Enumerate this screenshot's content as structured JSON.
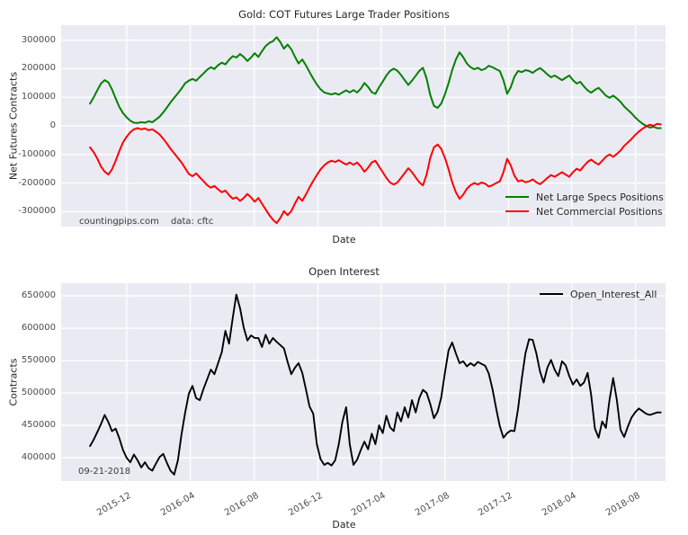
{
  "figure": {
    "background": "#ffffff",
    "plot_background": "#eaeaf2",
    "gridline_color": "#ffffff"
  },
  "chart_data": [
    {
      "type": "line",
      "title": "Gold: COT Futures Large Trader Positions",
      "xlabel": "Date",
      "ylabel": "Net Futures Contracts",
      "grid": true,
      "legend_position": "lower right",
      "annotations": [
        "countingpips.com",
        "data: cftc"
      ],
      "x_unit": "week_index",
      "xlim": [
        -7.9,
        157.3
      ],
      "ylim": [
        -352000,
        352000
      ],
      "yticks": [
        300000,
        200000,
        100000,
        0,
        -100000,
        -200000,
        -300000
      ],
      "xticks": [
        10,
        27.4,
        44.9,
        62.3,
        79.6,
        97.0,
        114.4,
        131.7,
        149.1
      ],
      "series": [
        {
          "name": "Net Large Specs Positions",
          "color": "#008000",
          "values": [
            78000,
            100000,
            125000,
            148000,
            160000,
            152000,
            128000,
            96000,
            66000,
            45000,
            30000,
            18000,
            11000,
            10000,
            13000,
            11000,
            16000,
            13000,
            22000,
            32000,
            47000,
            64000,
            82000,
            98000,
            114000,
            130000,
            149000,
            158000,
            164000,
            158000,
            171000,
            183000,
            196000,
            205000,
            199000,
            212000,
            221000,
            215000,
            231000,
            244000,
            239000,
            251000,
            241000,
            227000,
            239000,
            254000,
            241000,
            261000,
            279000,
            290000,
            296000,
            310000,
            293000,
            270000,
            284000,
            268000,
            242000,
            218000,
            232000,
            212000,
            188000,
            165000,
            145000,
            128000,
            117000,
            113000,
            110000,
            114000,
            109000,
            117000,
            124000,
            117000,
            125000,
            117000,
            130000,
            150000,
            136000,
            118000,
            112000,
            135000,
            155000,
            176000,
            192000,
            200000,
            193000,
            178000,
            160000,
            143000,
            158000,
            175000,
            192000,
            203000,
            165000,
            108000,
            70000,
            63000,
            78000,
            110000,
            150000,
            195000,
            232000,
            257000,
            240000,
            218000,
            205000,
            198000,
            203000,
            195000,
            200000,
            210000,
            205000,
            198000,
            192000,
            160000,
            112000,
            135000,
            172000,
            192000,
            188000,
            195000,
            192000,
            185000,
            195000,
            202000,
            192000,
            180000,
            170000,
            176000,
            168000,
            160000,
            168000,
            176000,
            160000,
            148000,
            154000,
            138000,
            124000,
            116000,
            126000,
            133000,
            120000,
            106000,
            98000,
            106000,
            96000,
            84000,
            68000,
            56000,
            44000,
            30000,
            18000,
            8000,
            0,
            -6000,
            -3000,
            -8000,
            -8000
          ]
        },
        {
          "name": "Net Commercial Positions",
          "color": "#ff0000",
          "values": [
            -75000,
            -92000,
            -115000,
            -142000,
            -160000,
            -170000,
            -152000,
            -122000,
            -88000,
            -58000,
            -38000,
            -22000,
            -12000,
            -8000,
            -12000,
            -9000,
            -15000,
            -12000,
            -20000,
            -30000,
            -45000,
            -62000,
            -80000,
            -96000,
            -112000,
            -128000,
            -148000,
            -168000,
            -176000,
            -166000,
            -180000,
            -193000,
            -207000,
            -216000,
            -210000,
            -222000,
            -232000,
            -226000,
            -242000,
            -255000,
            -250000,
            -262000,
            -252000,
            -238000,
            -250000,
            -265000,
            -252000,
            -272000,
            -292000,
            -312000,
            -328000,
            -340000,
            -322000,
            -298000,
            -312000,
            -298000,
            -272000,
            -248000,
            -262000,
            -240000,
            -215000,
            -192000,
            -172000,
            -152000,
            -138000,
            -128000,
            -122000,
            -126000,
            -120000,
            -128000,
            -135000,
            -128000,
            -136000,
            -128000,
            -142000,
            -160000,
            -146000,
            -128000,
            -122000,
            -142000,
            -162000,
            -182000,
            -198000,
            -205000,
            -198000,
            -182000,
            -165000,
            -148000,
            -162000,
            -180000,
            -197000,
            -208000,
            -170000,
            -112000,
            -75000,
            -65000,
            -80000,
            -112000,
            -152000,
            -197000,
            -232000,
            -255000,
            -240000,
            -220000,
            -207000,
            -200000,
            -205000,
            -198000,
            -202000,
            -212000,
            -207000,
            -200000,
            -194000,
            -162000,
            -115000,
            -138000,
            -174000,
            -194000,
            -190000,
            -197000,
            -194000,
            -187000,
            -197000,
            -204000,
            -194000,
            -182000,
            -172000,
            -178000,
            -170000,
            -162000,
            -170000,
            -178000,
            -162000,
            -150000,
            -156000,
            -140000,
            -126000,
            -118000,
            -128000,
            -135000,
            -122000,
            -108000,
            -100000,
            -108000,
            -98000,
            -86000,
            -70000,
            -58000,
            -46000,
            -32000,
            -20000,
            -10000,
            -2000,
            4000,
            0,
            7000,
            5000
          ]
        }
      ]
    },
    {
      "type": "line",
      "title": "Open Interest",
      "xlabel": "Date",
      "ylabel": "Contracts",
      "grid": true,
      "legend_position": "upper right",
      "annotation": "09-21-2018",
      "x_unit": "week_index",
      "xlim": [
        -7.9,
        157.3
      ],
      "ylim": [
        364000,
        669500
      ],
      "yticks": [
        650000,
        600000,
        550000,
        500000,
        450000,
        400000
      ],
      "xticks": [
        10,
        27.4,
        44.9,
        62.3,
        79.6,
        97.0,
        114.4,
        131.7,
        149.1
      ],
      "xtick_labels": [
        "2015-12",
        "2016-04",
        "2016-08",
        "2016-12",
        "2017-04",
        "2017-08",
        "2017-12",
        "2018-04",
        "2018-08"
      ],
      "series": [
        {
          "name": "Open_Interest_All",
          "color": "#000000",
          "values": [
            418000,
            428000,
            440000,
            452000,
            466000,
            455000,
            441000,
            445000,
            430000,
            412000,
            400000,
            393000,
            405000,
            396000,
            385000,
            393000,
            384000,
            380000,
            391000,
            401000,
            406000,
            392000,
            380000,
            374000,
            396000,
            436000,
            470000,
            499000,
            511000,
            492000,
            489000,
            506000,
            521000,
            536000,
            529000,
            546000,
            563000,
            596000,
            576000,
            616000,
            652000,
            631000,
            601000,
            581000,
            589000,
            585000,
            585000,
            571000,
            590000,
            576000,
            585000,
            579000,
            574000,
            569000,
            548000,
            529000,
            539000,
            546000,
            531000,
            506000,
            479000,
            468000,
            421000,
            398000,
            389000,
            392000,
            388000,
            396000,
            421000,
            456000,
            478000,
            421000,
            389000,
            397000,
            412000,
            425000,
            413000,
            437000,
            421000,
            450000,
            438000,
            465000,
            447000,
            441000,
            470000,
            456000,
            478000,
            462000,
            489000,
            470000,
            492000,
            505000,
            500000,
            483000,
            461000,
            471000,
            493000,
            531000,
            566000,
            578000,
            561000,
            546000,
            549000,
            541000,
            546000,
            542000,
            548000,
            545000,
            542000,
            530000,
            506000,
            476000,
            449000,
            431000,
            438000,
            442000,
            441000,
            476000,
            521000,
            561000,
            583000,
            582000,
            561000,
            533000,
            516000,
            539000,
            551000,
            536000,
            526000,
            549000,
            543000,
            526000,
            513000,
            521000,
            511000,
            516000,
            531000,
            496000,
            445000,
            431000,
            456000,
            446000,
            490000,
            523000,
            489000,
            443000,
            432000,
            448000,
            462000,
            470000,
            476000,
            472000,
            468000,
            466000,
            468000,
            470000,
            470000
          ]
        }
      ]
    }
  ]
}
